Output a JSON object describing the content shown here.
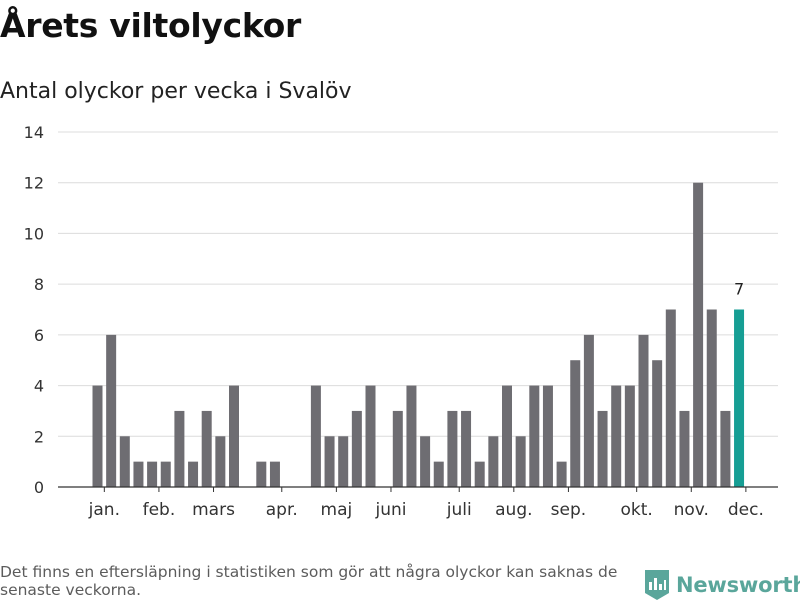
{
  "page": {
    "title": "Årets viltolyckor",
    "subtitle": "Antal olyckor per vecka i Svalöv",
    "footnote": "Det finns en eftersläpning i statistiken som gör att några olyckor kan saknas de senaste veckorna.",
    "brand": "Newsworthy",
    "brand_icon": "bar-chart-logo-icon",
    "brand_color": "#5aa69b"
  },
  "chart_data": {
    "type": "bar",
    "title": "Årets viltolyckor",
    "subtitle": "Antal olyckor per vecka i Svalöv",
    "xlabel": "",
    "ylabel": "",
    "weeks": [
      1,
      2,
      3,
      4,
      5,
      6,
      7,
      8,
      9,
      10,
      11,
      12,
      13,
      14,
      15,
      16,
      17,
      18,
      19,
      20,
      21,
      22,
      23,
      24,
      25,
      26,
      27,
      28,
      29,
      30,
      31,
      32,
      33,
      34,
      35,
      36,
      37,
      38,
      39,
      40,
      41,
      42,
      43,
      44,
      45,
      46,
      47,
      48,
      49
    ],
    "values": [
      4,
      6,
      2,
      1,
      1,
      1,
      3,
      1,
      3,
      2,
      4,
      0,
      1,
      1,
      0,
      0,
      4,
      2,
      2,
      3,
      4,
      0,
      3,
      4,
      2,
      1,
      3,
      3,
      1,
      2,
      4,
      2,
      4,
      4,
      1,
      5,
      6,
      3,
      4,
      4,
      6,
      5,
      7,
      3,
      12,
      7,
      3,
      7,
      0
    ],
    "highlight_week": 48,
    "highlight_label": "7",
    "bar_color": "#6e6d72",
    "highlight_color": "#169e94",
    "ylim": [
      0,
      14
    ],
    "yticks": [
      0,
      2,
      4,
      6,
      8,
      10,
      12,
      14
    ],
    "month_ticks": [
      {
        "label": "jan.",
        "week": 1.5
      },
      {
        "label": "feb.",
        "week": 5.5
      },
      {
        "label": "mars",
        "week": 9.5
      },
      {
        "label": "apr.",
        "week": 14.5
      },
      {
        "label": "maj",
        "week": 18.5
      },
      {
        "label": "juni",
        "week": 22.5
      },
      {
        "label": "juli",
        "week": 27.5
      },
      {
        "label": "aug.",
        "week": 31.5
      },
      {
        "label": "sep.",
        "week": 35.5
      },
      {
        "label": "okt.",
        "week": 40.5
      },
      {
        "label": "nov.",
        "week": 44.5
      },
      {
        "label": "dec.",
        "week": 48.5
      }
    ],
    "grid": true
  }
}
